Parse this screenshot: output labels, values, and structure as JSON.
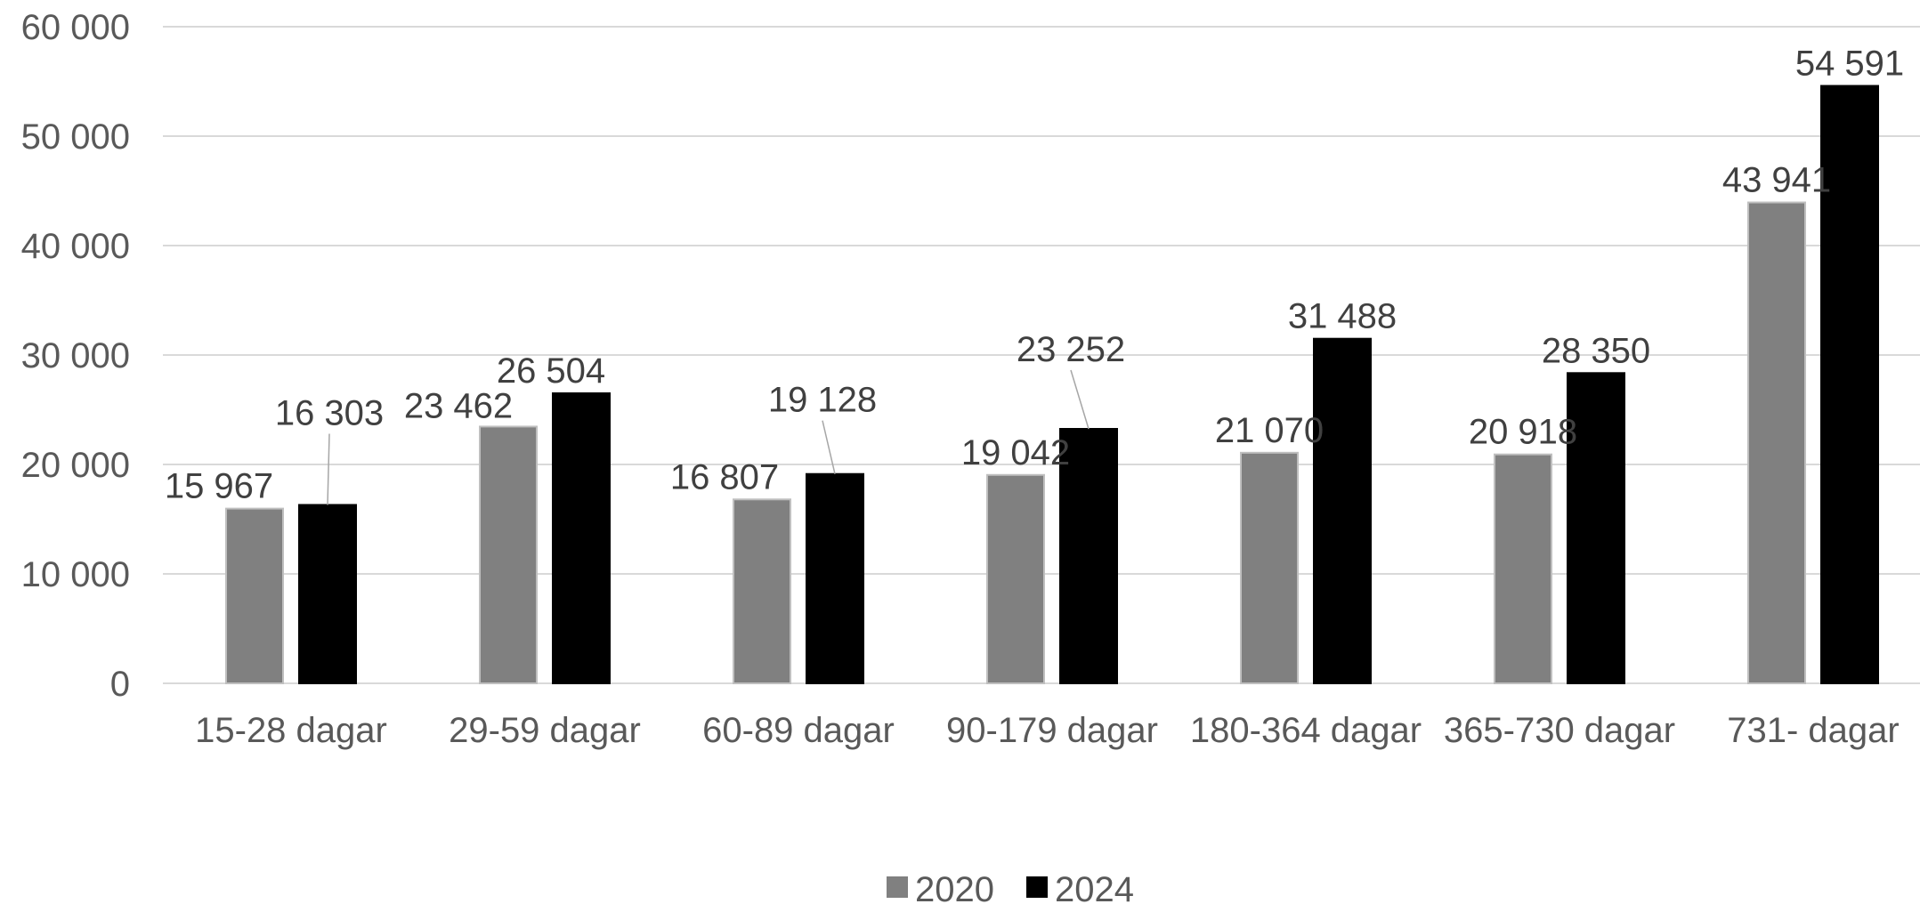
{
  "chart_data": {
    "type": "bar",
    "title": "",
    "xlabel": "",
    "ylabel": "",
    "categories": [
      "15-28 dagar",
      "29-59 dagar",
      "60-89 dagar",
      "90-179 dagar",
      "180-364 dagar",
      "365-730 dagar",
      "731- dagar"
    ],
    "series": [
      {
        "name": "2020",
        "values": [
          15967,
          23462,
          16807,
          19042,
          21070,
          20918,
          43941
        ],
        "labels": [
          "15 967",
          "23 462",
          "16 807",
          "19 042",
          "21 070",
          "20 918",
          "43 941"
        ],
        "color": "#808080"
      },
      {
        "name": "2024",
        "values": [
          16303,
          26504,
          19128,
          23252,
          31488,
          28350,
          54591
        ],
        "labels": [
          "16 303",
          "26 504",
          "19 128",
          "23 252",
          "31 488",
          "28 350",
          "54 591"
        ],
        "color": "#000000"
      }
    ],
    "ylim": [
      0,
      60000
    ],
    "yticks": [
      0,
      10000,
      20000,
      30000,
      40000,
      50000,
      60000
    ],
    "ytick_labels": [
      "0",
      "10 000",
      "20 000",
      "30 000",
      "40 000",
      "50 000",
      "60 000"
    ],
    "grid": true,
    "legend_position": "bottom"
  }
}
